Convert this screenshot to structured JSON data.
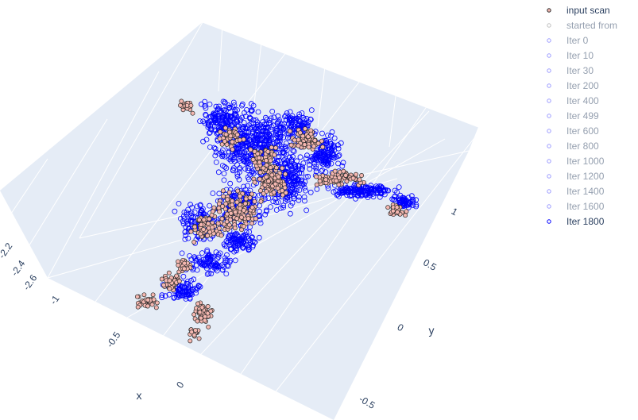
{
  "chart_data": {
    "type": "scatter",
    "subtype": "scatter3d",
    "axes": {
      "x": {
        "label": "x",
        "ticks": [
          "-1",
          "-0.5",
          "0"
        ]
      },
      "y": {
        "label": "y",
        "ticks": [
          "-0.5",
          "0",
          "0.5",
          "1"
        ]
      },
      "z": {
        "label": "",
        "ticks": [
          "-2.6",
          "-2.4",
          "-2.2"
        ]
      }
    },
    "grid": true,
    "background": "#e5ecf6",
    "legend_position": "top-right",
    "series": [
      {
        "name": "input scan",
        "visible": true,
        "marker": "filled-circle",
        "fill": "#f4b7b0",
        "line": "#2b2b2b"
      },
      {
        "name": "started from",
        "visible": false,
        "marker": "open-circle",
        "line": "#7f7f7f"
      },
      {
        "name": "Iter 0",
        "visible": false,
        "marker": "open-circle",
        "line": "#3a3aff"
      },
      {
        "name": "Iter 10",
        "visible": false,
        "marker": "open-circle",
        "line": "#3a3aff"
      },
      {
        "name": "Iter 30",
        "visible": false,
        "marker": "open-circle",
        "line": "#3a3aff"
      },
      {
        "name": "Iter 200",
        "visible": false,
        "marker": "open-circle",
        "line": "#3a3aff"
      },
      {
        "name": "Iter 400",
        "visible": false,
        "marker": "open-circle",
        "line": "#3a3aff"
      },
      {
        "name": "Iter 499",
        "visible": false,
        "marker": "open-circle",
        "line": "#3a3aff"
      },
      {
        "name": "Iter 600",
        "visible": false,
        "marker": "open-circle",
        "line": "#3a3aff"
      },
      {
        "name": "Iter 800",
        "visible": false,
        "marker": "open-circle",
        "line": "#3a3aff"
      },
      {
        "name": "Iter 1000",
        "visible": false,
        "marker": "open-circle",
        "line": "#3a3aff"
      },
      {
        "name": "Iter 1200",
        "visible": false,
        "marker": "open-circle",
        "line": "#3a3aff"
      },
      {
        "name": "Iter 1400",
        "visible": false,
        "marker": "open-circle",
        "line": "#3a3aff"
      },
      {
        "name": "Iter 1600",
        "visible": false,
        "marker": "open-circle",
        "line": "#3a3aff"
      },
      {
        "name": "Iter 1800",
        "visible": true,
        "marker": "open-circle",
        "line": "#0000ff"
      }
    ]
  }
}
